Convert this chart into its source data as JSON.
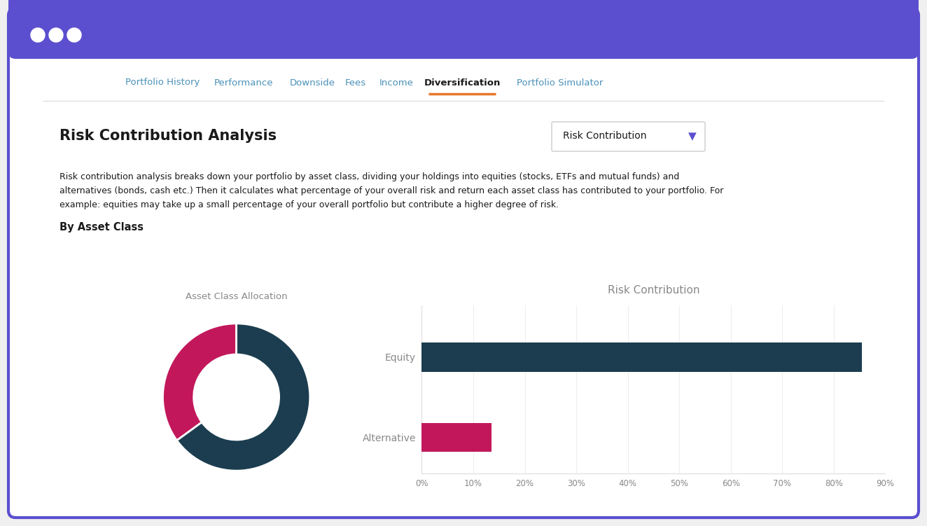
{
  "bg_color": "#f0f0f0",
  "browser_border_color": "#5b4fcf",
  "browser_chrome_color": "#5b4fcf",
  "browser_content_bg": "#ffffff",
  "nav_items": [
    "Portfolio History",
    "Performance",
    "Downside",
    "Fees",
    "Income",
    "Diversification",
    "Portfolio Simulator"
  ],
  "active_nav": "Diversification",
  "active_nav_color": "#e8762c",
  "nav_color": "#4a90b8",
  "title": "Risk Contribution Analysis",
  "dropdown_label": "Risk Contribution",
  "description_line1": "Risk contribution analysis breaks down your portfolio by asset class, dividing your holdings into equities (stocks, ETFs and mutual funds) and",
  "description_line2": "alternatives (bonds, cash etc.) Then it calculates what percentage of your overall risk and return each asset class has contributed to your portfolio. For",
  "description_line3": "example: equities may take up a small percentage of your overall portfolio but contribute a higher degree of risk.",
  "section_label": "By Asset Class",
  "donut_title": "Asset Class Allocation",
  "donut_slices": [
    0.35,
    0.65
  ],
  "donut_colors": [
    "#c2185b",
    "#1b3d4f"
  ],
  "donut_startangle": 90,
  "bar_title": "Risk Contribution",
  "bar_categories": [
    "Equity",
    "Alternative"
  ],
  "bar_values": [
    0.855,
    0.135
  ],
  "bar_colors": [
    "#1b3d4f",
    "#c2185b"
  ],
  "x_ticks": [
    "0%",
    "10%",
    "20%",
    "30%",
    "40%",
    "50%",
    "60%",
    "70%",
    "80%",
    "90%"
  ],
  "x_tick_vals": [
    0,
    0.1,
    0.2,
    0.3,
    0.4,
    0.5,
    0.6,
    0.7,
    0.8,
    0.9
  ],
  "text_color": "#1a1a1a",
  "gray_text": "#888888",
  "light_gray": "#dddddd",
  "nav_sep_color": "#e0e0e0",
  "dropdown_border": "#cccccc",
  "arrow_color": "#5b4fcf"
}
